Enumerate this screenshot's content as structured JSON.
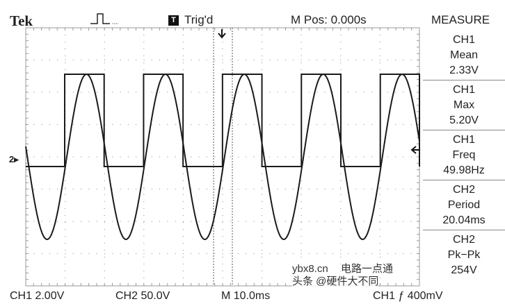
{
  "header": {
    "brand": "Tek",
    "acquisition_icon": "pulse-icon",
    "trigger_icon_letter": "T",
    "trigger_status": "Trig'd",
    "m_pos": "M Pos: 0.000s",
    "menu_title": "MEASURE"
  },
  "measurements": [
    {
      "source": "CH1",
      "type": "Mean",
      "value": "2.33V"
    },
    {
      "source": "CH1",
      "type": "Max",
      "value": "5.20V"
    },
    {
      "source": "CH1",
      "type": "Freq",
      "value": "49.98Hz"
    },
    {
      "source": "CH2",
      "type": "Period",
      "value": "20.04ms"
    },
    {
      "source": "CH2",
      "type": "Pk−Pk",
      "value": "254V"
    }
  ],
  "footer": {
    "ch1_scale": "CH1  2.00V",
    "ch2_scale": "CH2  50.0V",
    "timebase": "M 10.0ms",
    "trigger_setting": "CH1 ƒ 400mV"
  },
  "markers": {
    "channel_marker": "2"
  },
  "watermark": {
    "site": "ybx8.cn",
    "line1": "电路一点通",
    "line2": "头条 @硬件大不同"
  },
  "waveform": {
    "ch1": "square",
    "ch2": "sine",
    "period_ms": 20.04,
    "time_per_div_ms": 10,
    "colors": {
      "trace": "#1a1a1a",
      "grid": "#999999",
      "background": "#ffffff"
    }
  }
}
